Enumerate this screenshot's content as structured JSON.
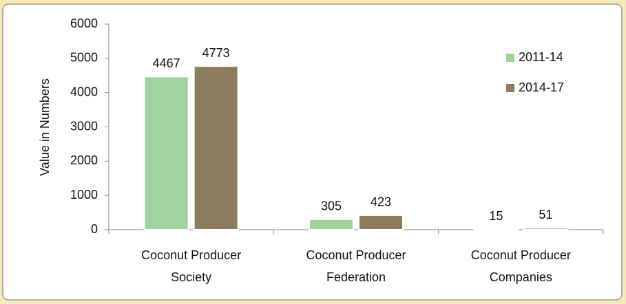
{
  "chart_data": {
    "type": "bar",
    "y_label": "Value in Numbers",
    "categories": [
      [
        "Coconut Producer",
        "Society"
      ],
      [
        "Coconut Producer",
        "Federation"
      ],
      [
        "Coconut Producer",
        "Companies"
      ]
    ],
    "series": [
      {
        "name": "2011-14",
        "color": "#9fd49f",
        "values": [
          4467,
          305,
          15
        ]
      },
      {
        "name": "2014-17",
        "color": "#8c7b5c",
        "values": [
          4773,
          423,
          51
        ]
      }
    ],
    "ylim": [
      0,
      6000
    ],
    "yticks": [
      0,
      1000,
      2000,
      3000,
      4000,
      5000,
      6000
    ],
    "legend": "upper right"
  }
}
